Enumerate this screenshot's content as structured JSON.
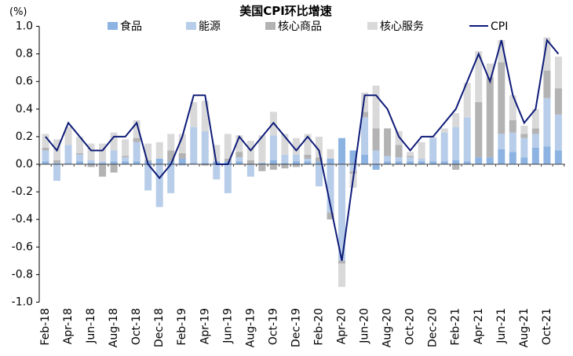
{
  "chart_data": {
    "type": "bar",
    "title": "美国CPI环比增速",
    "ylabel": "(%)",
    "ylim": [
      -1.0,
      1.0
    ],
    "yticks": [
      "1.0",
      "0.8",
      "0.6",
      "0.4",
      "0.2",
      "0.0",
      "-0.2",
      "-0.4",
      "-0.6",
      "-0.8",
      "-1.0"
    ],
    "xtick_step": 2,
    "xtick_labels": [
      "Feb-18",
      "Apr-18",
      "Jun-18",
      "Aug-18",
      "Oct-18",
      "Dec-18",
      "Feb-19",
      "Apr-19",
      "Jun-19",
      "Aug-19",
      "Oct-19",
      "Dec-19",
      "Feb-20",
      "Apr-20",
      "Jun-20",
      "Aug-20",
      "Oct-20",
      "Dec-20",
      "Feb-21",
      "Apr-21",
      "Jun-21",
      "Aug-21",
      "Oct-21"
    ],
    "series": [
      {
        "name": "食品",
        "color": "#8db3e2",
        "values": [
          0.02,
          0.01,
          0.01,
          0.02,
          0.01,
          0.01,
          0.02,
          0.02,
          0.02,
          0.02,
          0.04,
          0.02,
          0.04,
          0.01,
          0.01,
          0.02,
          0.02,
          0.02,
          0.0,
          0.01,
          0.03,
          0.01,
          0.02,
          0.02,
          0.02,
          0.04,
          0.19,
          0.1,
          0.07,
          -0.04,
          0.02,
          0.02,
          0.02,
          0.02,
          0.02,
          0.02,
          0.03,
          0.02,
          0.05,
          0.05,
          0.11,
          0.09,
          0.05,
          0.12,
          0.13,
          0.1
        ]
      },
      {
        "name": "能源",
        "color": "#b8cde9",
        "values": [
          0.08,
          -0.12,
          0.13,
          0.05,
          0.02,
          0.01,
          0.08,
          0.03,
          0.14,
          -0.19,
          -0.31,
          -0.21,
          -0.01,
          0.26,
          0.23,
          -0.11,
          -0.21,
          0.03,
          -0.09,
          0.0,
          0.18,
          0.06,
          0.05,
          0.02,
          -0.16,
          -0.35,
          -0.7,
          -0.05,
          0.27,
          0.1,
          0.04,
          0.03,
          0.03,
          0.02,
          0.17,
          0.21,
          0.24,
          0.32,
          0.0,
          0.0,
          0.11,
          0.14,
          0.14,
          0.1,
          0.35,
          0.26
        ]
      },
      {
        "name": "核心商品",
        "color": "#b3b3b3",
        "values": [
          0.02,
          0.02,
          0.0,
          0.01,
          -0.02,
          -0.09,
          -0.06,
          0.01,
          0.03,
          0.01,
          0.0,
          0.08,
          0.04,
          0.0,
          -0.01,
          0.0,
          0.02,
          0.04,
          0.03,
          -0.05,
          -0.04,
          -0.03,
          -0.02,
          0.03,
          0.03,
          -0.05,
          -0.02,
          -0.02,
          0.04,
          0.16,
          0.2,
          0.09,
          0.01,
          0.0,
          0.0,
          0.0,
          -0.04,
          0.0,
          0.4,
          0.58,
          0.52,
          0.09,
          0.03,
          0.04,
          0.2,
          0.19
        ]
      },
      {
        "name": "核心服务",
        "color": "#d9d9d9",
        "values": [
          0.1,
          0.15,
          0.13,
          0.12,
          0.12,
          0.13,
          0.13,
          0.12,
          0.13,
          0.12,
          0.12,
          0.12,
          0.14,
          0.18,
          0.22,
          0.12,
          0.18,
          0.12,
          0.14,
          0.2,
          0.17,
          0.15,
          0.12,
          0.15,
          0.15,
          0.07,
          -0.17,
          -0.1,
          0.14,
          0.31,
          0.0,
          0.1,
          0.03,
          0.12,
          0.01,
          0.03,
          0.1,
          0.25,
          0.37,
          0.1,
          0.16,
          0.18,
          0.06,
          0.14,
          0.24,
          0.23
        ]
      }
    ],
    "line": {
      "name": "CPI",
      "color": "#0e1b78",
      "values": [
        0.2,
        0.1,
        0.3,
        0.2,
        0.1,
        0.1,
        0.2,
        0.2,
        0.3,
        0.0,
        -0.1,
        0.0,
        0.2,
        0.5,
        0.5,
        0.0,
        0.0,
        0.2,
        0.1,
        0.2,
        0.3,
        0.2,
        0.1,
        0.2,
        0.1,
        -0.3,
        -0.7,
        -0.1,
        0.5,
        0.5,
        0.4,
        0.2,
        0.1,
        0.2,
        0.2,
        0.3,
        0.4,
        0.6,
        0.8,
        0.6,
        0.9,
        0.5,
        0.3,
        0.4,
        0.9,
        0.8
      ]
    }
  }
}
